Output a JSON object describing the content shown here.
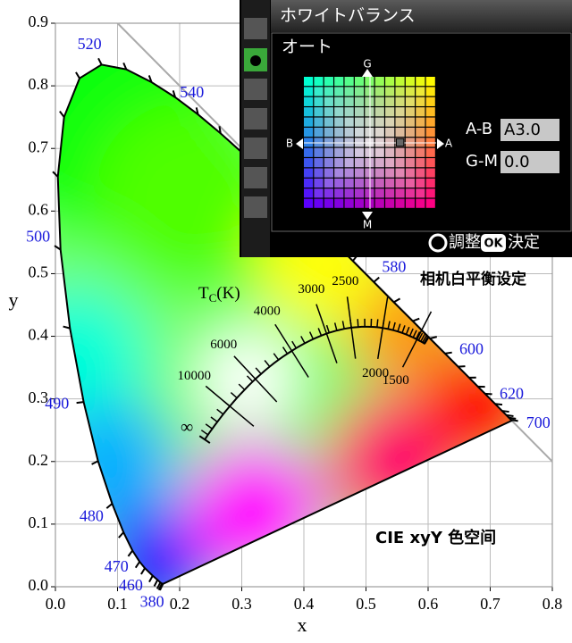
{
  "chart_data": {
    "type": "chromaticity",
    "x_label": "x",
    "y_label": "y",
    "xlim": [
      0,
      0.8
    ],
    "ylim": [
      0,
      0.9
    ],
    "xticks": [
      {
        "value": 0,
        "label": "0.0"
      },
      {
        "value": 0.1,
        "label": "0.1"
      },
      {
        "value": 0.2,
        "label": "0.2"
      },
      {
        "value": 0.3,
        "label": "0.3"
      },
      {
        "value": 0.4,
        "label": "0.4"
      },
      {
        "value": 0.5,
        "label": "0.5"
      },
      {
        "value": 0.6,
        "label": "0.6"
      },
      {
        "value": 0.7,
        "label": "0.7"
      },
      {
        "value": 0.8,
        "label": "0.8"
      }
    ],
    "yticks": [
      {
        "value": 0,
        "label": "0.0"
      },
      {
        "value": 0.1,
        "label": "0.1"
      },
      {
        "value": 0.2,
        "label": "0.2"
      },
      {
        "value": 0.3,
        "label": "0.3"
      },
      {
        "value": 0.4,
        "label": "0.4"
      },
      {
        "value": 0.5,
        "label": "0.5"
      },
      {
        "value": 0.6,
        "label": "0.6"
      },
      {
        "value": 0.7,
        "label": "0.7"
      },
      {
        "value": 0.8,
        "label": "0.8"
      },
      {
        "value": 0.9,
        "label": "0.9"
      }
    ],
    "grid": true,
    "wavelength_labels": [
      380,
      460,
      470,
      480,
      490,
      500,
      520,
      540,
      580,
      600,
      620,
      700
    ],
    "wavelength_color": "#1a1adb",
    "temperature_title": {
      "main": "T",
      "sub": "C",
      "unit": "(K)"
    },
    "temperature_labels": [
      10000,
      6000,
      4000,
      3000,
      2500,
      2000,
      1500
    ],
    "infinity_label": "∞",
    "annotations": [
      "相机白平衡设定",
      "CIE xyY 色空间"
    ]
  },
  "overlay": {
    "title": "ホワイトバランス",
    "mode": "オート",
    "axis_labels": {
      "G": "G",
      "M": "M",
      "B": "B",
      "A": "A"
    },
    "fields": [
      {
        "label": "A-B",
        "value": "A3.0"
      },
      {
        "label": "G-M",
        "value": "0.0"
      }
    ],
    "footer": {
      "adjust": "調整",
      "ok": "OK",
      "confirm": "決定"
    }
  }
}
